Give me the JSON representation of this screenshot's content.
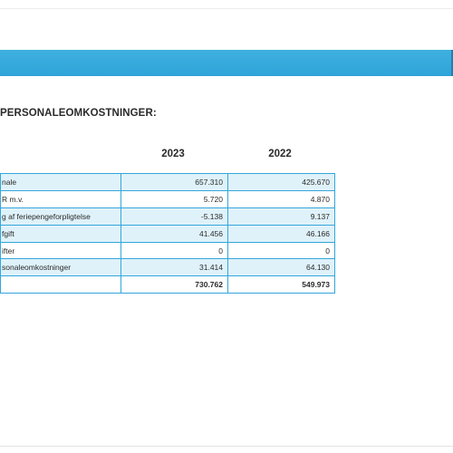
{
  "section": {
    "title": "PERSONALEOMKOSTNINGER:"
  },
  "columns": [
    "2023",
    "2022"
  ],
  "rows": [
    {
      "label": "nale",
      "y2023": "657.310",
      "y2022": "425.670"
    },
    {
      "label": "R m.v.",
      "y2023": "5.720",
      "y2022": "4.870"
    },
    {
      "label": "g af feriepengeforpligtelse",
      "y2023": "-5.138",
      "y2022": "9.137"
    },
    {
      "label": "fgift",
      "y2023": "41.456",
      "y2022": "46.166"
    },
    {
      "label": "ifter",
      "y2023": "0",
      "y2022": "0"
    },
    {
      "label": "sonaleomkostninger",
      "y2023": "31.414",
      "y2022": "64.130"
    }
  ],
  "total": {
    "label": "",
    "y2023": "730.762",
    "y2022": "549.973"
  },
  "colors": {
    "band": "#2ea4d9",
    "border": "#33a7db",
    "shade": "#dff2fa"
  }
}
